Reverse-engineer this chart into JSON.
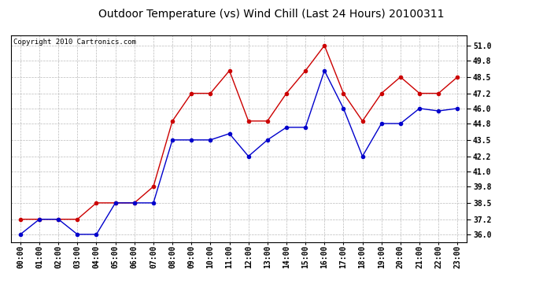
{
  "title": "Outdoor Temperature (vs) Wind Chill (Last 24 Hours) 20100311",
  "copyright": "Copyright 2010 Cartronics.com",
  "hours": [
    "00:00",
    "01:00",
    "02:00",
    "03:00",
    "04:00",
    "05:00",
    "06:00",
    "07:00",
    "08:00",
    "09:00",
    "10:00",
    "11:00",
    "12:00",
    "13:00",
    "14:00",
    "15:00",
    "16:00",
    "17:00",
    "18:00",
    "19:00",
    "20:00",
    "21:00",
    "22:00",
    "23:00"
  ],
  "temp": [
    37.2,
    37.2,
    37.2,
    37.2,
    38.5,
    38.5,
    38.5,
    39.8,
    45.0,
    47.2,
    47.2,
    49.0,
    45.0,
    45.0,
    47.2,
    49.0,
    51.0,
    47.2,
    45.0,
    47.2,
    48.5,
    47.2,
    47.2,
    48.5
  ],
  "windchill": [
    36.0,
    37.2,
    37.2,
    36.0,
    36.0,
    38.5,
    38.5,
    38.5,
    43.5,
    43.5,
    43.5,
    44.0,
    42.2,
    43.5,
    44.5,
    44.5,
    49.0,
    46.0,
    42.2,
    44.8,
    44.8,
    46.0,
    45.8,
    46.0
  ],
  "ylim": [
    35.4,
    51.8
  ],
  "yticks": [
    36.0,
    37.2,
    38.5,
    39.8,
    41.0,
    42.2,
    43.5,
    44.8,
    46.0,
    47.2,
    48.5,
    49.8,
    51.0
  ],
  "temp_color": "#cc0000",
  "windchill_color": "#0000cc",
  "bg_color": "#ffffff",
  "grid_color": "#bbbbbb",
  "title_fontsize": 10,
  "copyright_fontsize": 6.5,
  "tick_fontsize": 7,
  "marker_size": 3
}
